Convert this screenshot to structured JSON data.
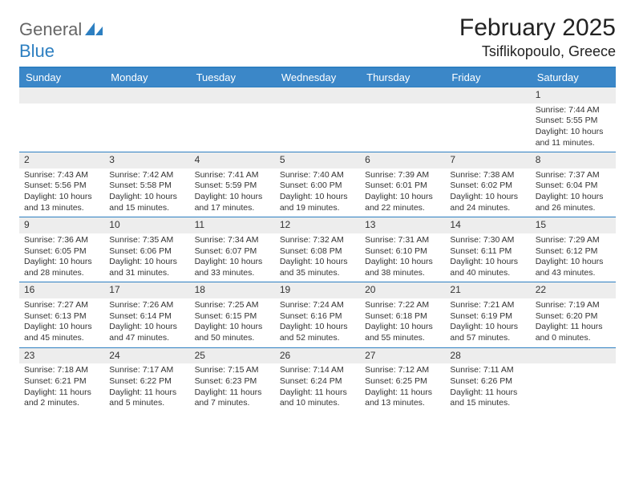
{
  "logo": {
    "text1": "General",
    "text2": "Blue"
  },
  "title": "February 2025",
  "location": "Tsiflikopoulo, Greece",
  "colors": {
    "header_bg": "#3b87c8",
    "header_text": "#ffffff",
    "border": "#2d7fc1",
    "daynum_bg": "#ededed",
    "text": "#333333",
    "logo_gray": "#666666",
    "logo_blue": "#2d7fc1"
  },
  "day_names": [
    "Sunday",
    "Monday",
    "Tuesday",
    "Wednesday",
    "Thursday",
    "Friday",
    "Saturday"
  ],
  "weeks": [
    [
      null,
      null,
      null,
      null,
      null,
      null,
      {
        "d": "1",
        "sr": "7:44 AM",
        "ss": "5:55 PM",
        "dl": "10 hours and 11 minutes."
      }
    ],
    [
      {
        "d": "2",
        "sr": "7:43 AM",
        "ss": "5:56 PM",
        "dl": "10 hours and 13 minutes."
      },
      {
        "d": "3",
        "sr": "7:42 AM",
        "ss": "5:58 PM",
        "dl": "10 hours and 15 minutes."
      },
      {
        "d": "4",
        "sr": "7:41 AM",
        "ss": "5:59 PM",
        "dl": "10 hours and 17 minutes."
      },
      {
        "d": "5",
        "sr": "7:40 AM",
        "ss": "6:00 PM",
        "dl": "10 hours and 19 minutes."
      },
      {
        "d": "6",
        "sr": "7:39 AM",
        "ss": "6:01 PM",
        "dl": "10 hours and 22 minutes."
      },
      {
        "d": "7",
        "sr": "7:38 AM",
        "ss": "6:02 PM",
        "dl": "10 hours and 24 minutes."
      },
      {
        "d": "8",
        "sr": "7:37 AM",
        "ss": "6:04 PM",
        "dl": "10 hours and 26 minutes."
      }
    ],
    [
      {
        "d": "9",
        "sr": "7:36 AM",
        "ss": "6:05 PM",
        "dl": "10 hours and 28 minutes."
      },
      {
        "d": "10",
        "sr": "7:35 AM",
        "ss": "6:06 PM",
        "dl": "10 hours and 31 minutes."
      },
      {
        "d": "11",
        "sr": "7:34 AM",
        "ss": "6:07 PM",
        "dl": "10 hours and 33 minutes."
      },
      {
        "d": "12",
        "sr": "7:32 AM",
        "ss": "6:08 PM",
        "dl": "10 hours and 35 minutes."
      },
      {
        "d": "13",
        "sr": "7:31 AM",
        "ss": "6:10 PM",
        "dl": "10 hours and 38 minutes."
      },
      {
        "d": "14",
        "sr": "7:30 AM",
        "ss": "6:11 PM",
        "dl": "10 hours and 40 minutes."
      },
      {
        "d": "15",
        "sr": "7:29 AM",
        "ss": "6:12 PM",
        "dl": "10 hours and 43 minutes."
      }
    ],
    [
      {
        "d": "16",
        "sr": "7:27 AM",
        "ss": "6:13 PM",
        "dl": "10 hours and 45 minutes."
      },
      {
        "d": "17",
        "sr": "7:26 AM",
        "ss": "6:14 PM",
        "dl": "10 hours and 47 minutes."
      },
      {
        "d": "18",
        "sr": "7:25 AM",
        "ss": "6:15 PM",
        "dl": "10 hours and 50 minutes."
      },
      {
        "d": "19",
        "sr": "7:24 AM",
        "ss": "6:16 PM",
        "dl": "10 hours and 52 minutes."
      },
      {
        "d": "20",
        "sr": "7:22 AM",
        "ss": "6:18 PM",
        "dl": "10 hours and 55 minutes."
      },
      {
        "d": "21",
        "sr": "7:21 AM",
        "ss": "6:19 PM",
        "dl": "10 hours and 57 minutes."
      },
      {
        "d": "22",
        "sr": "7:19 AM",
        "ss": "6:20 PM",
        "dl": "11 hours and 0 minutes."
      }
    ],
    [
      {
        "d": "23",
        "sr": "7:18 AM",
        "ss": "6:21 PM",
        "dl": "11 hours and 2 minutes."
      },
      {
        "d": "24",
        "sr": "7:17 AM",
        "ss": "6:22 PM",
        "dl": "11 hours and 5 minutes."
      },
      {
        "d": "25",
        "sr": "7:15 AM",
        "ss": "6:23 PM",
        "dl": "11 hours and 7 minutes."
      },
      {
        "d": "26",
        "sr": "7:14 AM",
        "ss": "6:24 PM",
        "dl": "11 hours and 10 minutes."
      },
      {
        "d": "27",
        "sr": "7:12 AM",
        "ss": "6:25 PM",
        "dl": "11 hours and 13 minutes."
      },
      {
        "d": "28",
        "sr": "7:11 AM",
        "ss": "6:26 PM",
        "dl": "11 hours and 15 minutes."
      },
      null
    ]
  ],
  "labels": {
    "sunrise": "Sunrise: ",
    "sunset": "Sunset: ",
    "daylight": "Daylight: "
  }
}
